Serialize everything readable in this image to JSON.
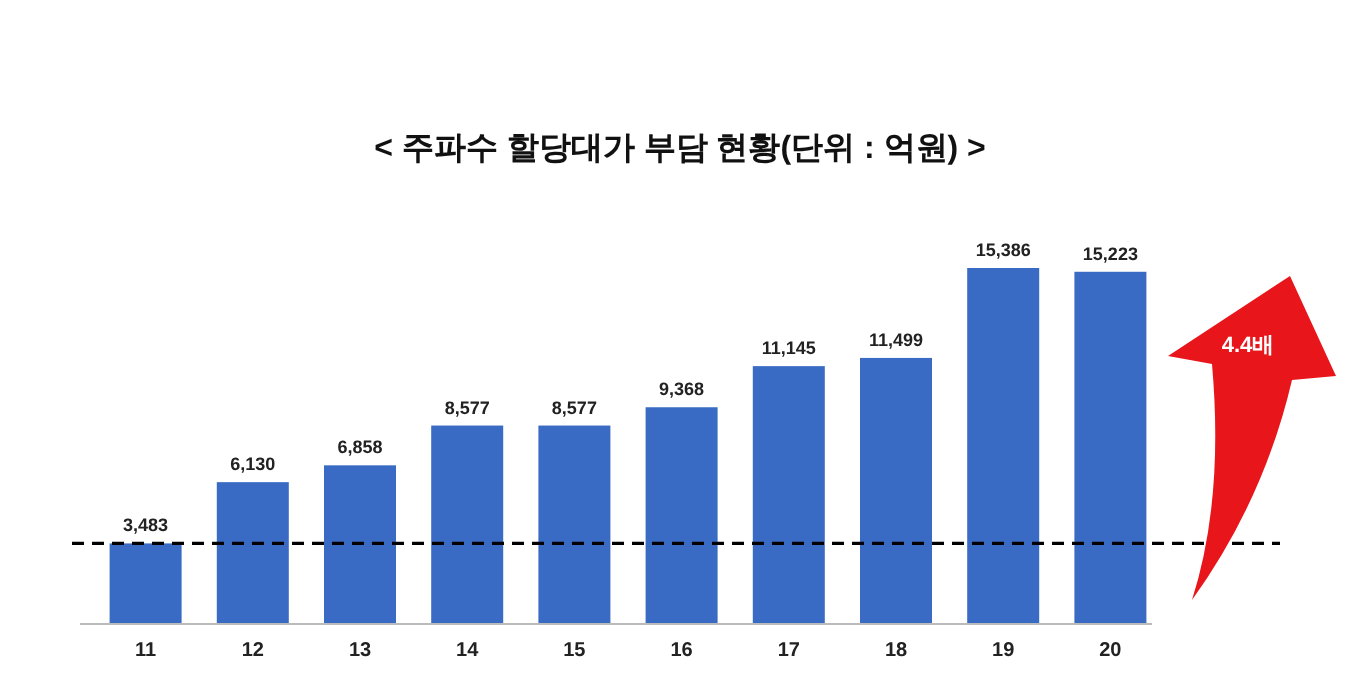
{
  "chart_data": {
    "type": "bar",
    "title": "< 주파수 할당대가 부담 현황(단위 : 억원) >",
    "categories": [
      "11",
      "12",
      "13",
      "14",
      "15",
      "16",
      "17",
      "18",
      "19",
      "20"
    ],
    "values": [
      3483,
      6130,
      6858,
      8577,
      8577,
      9368,
      11145,
      11499,
      15386,
      15223
    ],
    "value_labels": [
      "3,483",
      "6,130",
      "6,858",
      "8,577",
      "8,577",
      "9,368",
      "11,145",
      "11,499",
      "15,386",
      "15,223"
    ],
    "color": "#3a6bc4",
    "ref_lines": [
      {
        "axis": "y",
        "value": 3483,
        "color": "#000000",
        "line_style": "dashed"
      }
    ],
    "annotations": [
      "4.4배"
    ]
  }
}
